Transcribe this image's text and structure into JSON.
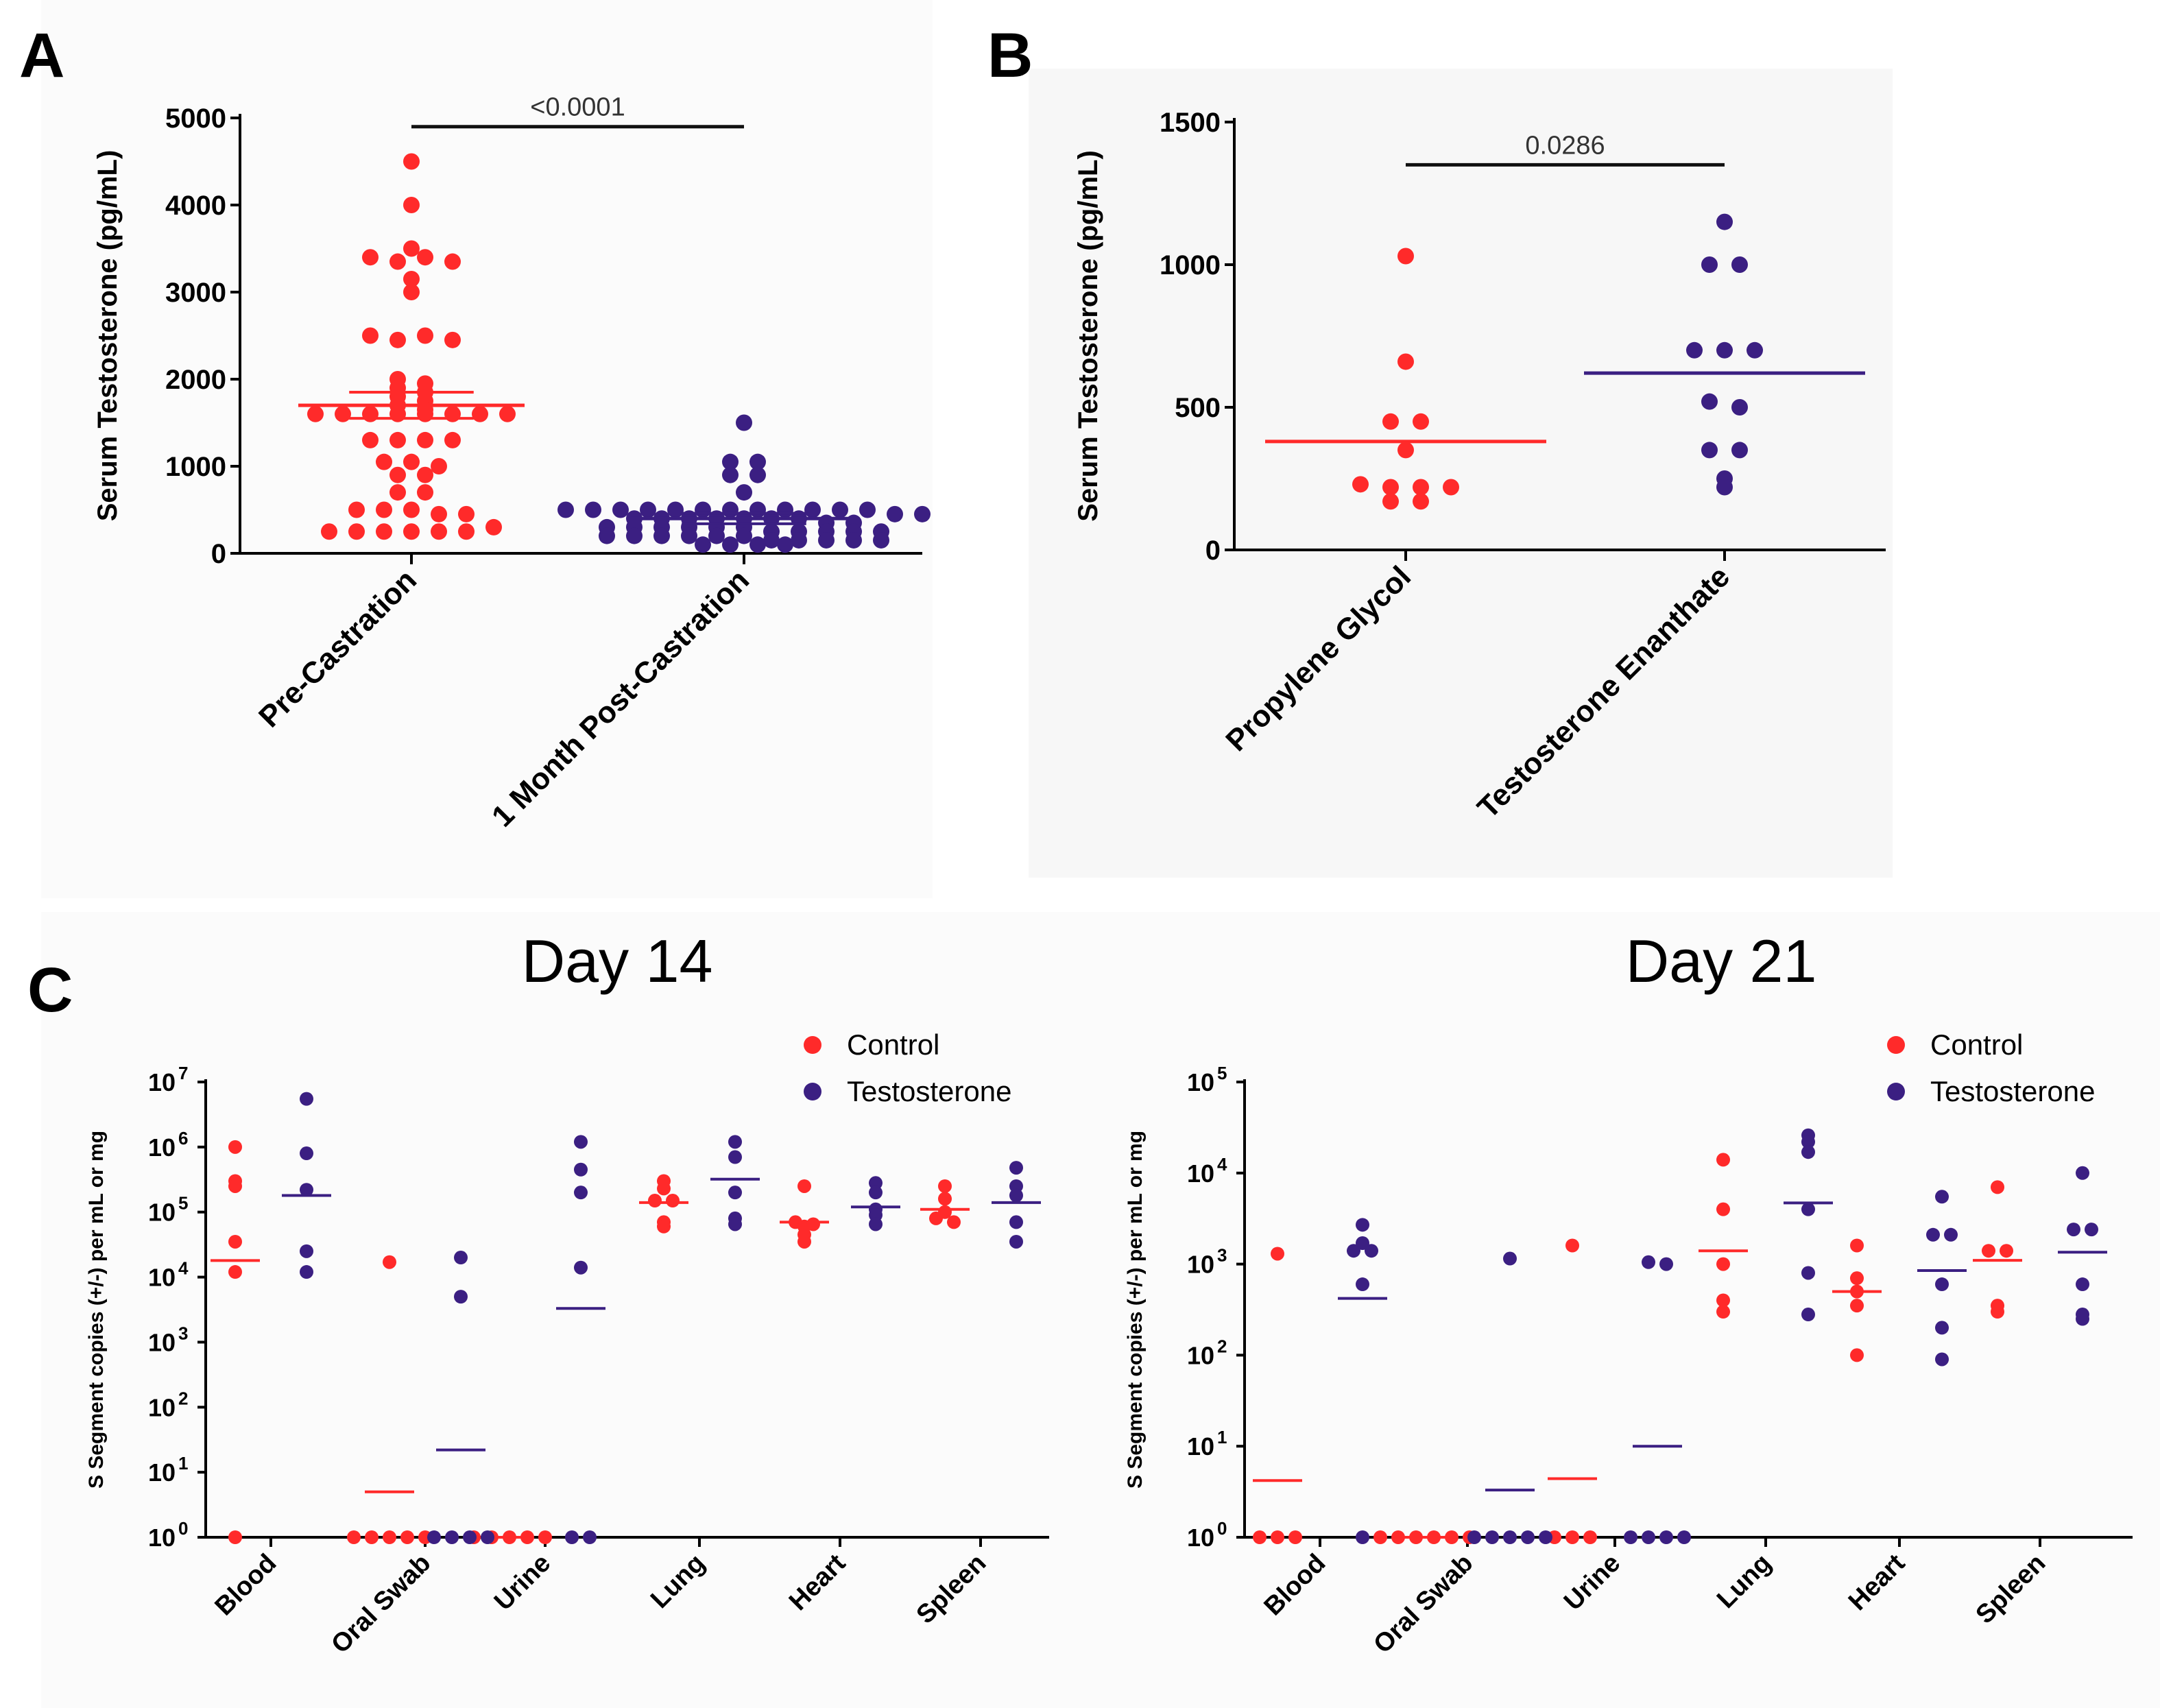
{
  "figure": {
    "panel_labels": [
      "A",
      "B",
      "C"
    ],
    "colors": {
      "control": "#ff2a2a",
      "testosterone": "#3b1f82",
      "axis": "#000000",
      "background": "#ffffff",
      "panel_bg": "#f9f9f9"
    }
  },
  "chart_data": [
    {
      "id": "A",
      "type": "scatter",
      "title": "",
      "ylabel": "Serum Testosterone (pg/mL)",
      "ylim": [
        0,
        5000
      ],
      "yticks": [
        "0",
        "1000",
        "2000",
        "3000",
        "4000",
        "5000"
      ],
      "ytick_values": [
        0,
        1000,
        2000,
        3000,
        4000,
        5000
      ],
      "categories": [
        "Pre-Castration",
        "1 Month Post-Castration"
      ],
      "series": [
        {
          "name": "Pre-Castration",
          "color": "#ff2a2a",
          "values": [
            4500,
            4000,
            3500,
            3400,
            3350,
            3400,
            3350,
            3150,
            3000,
            2500,
            2450,
            2500,
            2450,
            2000,
            1950,
            1900,
            1850,
            1800,
            1750,
            1700,
            1650,
            1600,
            1600,
            1600,
            1600,
            1600,
            1600,
            1600,
            1600,
            1300,
            1300,
            1300,
            1300,
            1050,
            1050,
            1000,
            900,
            900,
            700,
            700,
            500,
            500,
            500,
            450,
            450,
            250,
            250,
            250,
            250,
            250,
            250,
            300
          ],
          "mean": 1700,
          "sem_upper": 1850,
          "sem_lower": 1550
        },
        {
          "name": "1 Month Post-Castration",
          "color": "#3b1f82",
          "values": [
            1500,
            1050,
            1050,
            900,
            900,
            700,
            500,
            500,
            500,
            500,
            500,
            500,
            500,
            500,
            500,
            500,
            500,
            500,
            450,
            450,
            400,
            400,
            400,
            400,
            400,
            400,
            400,
            350,
            350,
            300,
            300,
            300,
            300,
            300,
            300,
            250,
            250,
            250,
            250,
            250,
            200,
            200,
            200,
            200,
            200,
            200,
            150,
            150,
            150,
            150,
            150,
            100,
            100,
            100,
            100
          ],
          "mean": 400,
          "sem_upper": 460,
          "sem_lower": 340
        }
      ],
      "annotations": [
        {
          "text": "<0.0001",
          "between": [
            0,
            1
          ],
          "at_value": 4900
        }
      ]
    },
    {
      "id": "B",
      "type": "scatter",
      "title": "",
      "ylabel": "Serum Testosterone (pg/mL)",
      "ylim": [
        0,
        1500
      ],
      "yticks": [
        "0",
        "500",
        "1000",
        "1500"
      ],
      "ytick_values": [
        0,
        500,
        1000,
        1500
      ],
      "categories": [
        "Propylene Glycol",
        "Testosterone Enanthate"
      ],
      "series": [
        {
          "name": "Propylene Glycol",
          "color": "#ff2a2a",
          "values": [
            1030,
            660,
            450,
            450,
            350,
            230,
            220,
            220,
            220,
            170,
            170
          ],
          "mean": 380
        },
        {
          "name": "Testosterone Enanthate",
          "color": "#3b1f82",
          "values": [
            1150,
            1000,
            1000,
            700,
            700,
            700,
            520,
            500,
            350,
            350,
            250,
            220
          ],
          "mean": 620
        }
      ],
      "annotations": [
        {
          "text": "0.0286",
          "between": [
            0,
            1
          ],
          "at_value": 1350
        }
      ]
    },
    {
      "id": "C-Day14",
      "type": "scatter",
      "yscale": "log",
      "title": "Day 14",
      "ylabel": "S Segment copies (+/-) per mL or mg",
      "ylim_exp": [
        0,
        7
      ],
      "ytick_exponents": [
        "0",
        "1",
        "2",
        "3",
        "4",
        "5",
        "6",
        "7"
      ],
      "categories": [
        "Blood",
        "Oral Swab",
        "Urine",
        "Lung",
        "Heart",
        "Spleen"
      ],
      "legend": [
        "Control",
        "Testosterone"
      ],
      "legend_position": "top-right",
      "series": [
        {
          "name": "Control",
          "color": "#ff2a2a",
          "points": [
            [
              0,
              [
                1000000,
                300000,
                250000,
                35000,
                12000,
                1
              ]
            ],
            [
              1,
              [
                17000,
                1,
                1,
                1,
                1,
                1
              ]
            ],
            [
              2,
              [
                1,
                1,
                1,
                1,
                1
              ]
            ],
            [
              3,
              [
                300000,
                150000,
                150000,
                230000,
                70000,
                60000
              ]
            ],
            [
              4,
              [
                250000,
                70000,
                60000,
                45000,
                35000,
                65000
              ]
            ],
            [
              5,
              [
                250000,
                160000,
                100000,
                80000,
                70000
              ]
            ]
          ],
          "means": [
            18000,
            5,
            1,
            140000,
            70000,
            110000
          ]
        },
        {
          "name": "Testosterone",
          "color": "#3b1f82",
          "points": [
            [
              0,
              [
                5500000,
                800000,
                220000,
                25000,
                12000
              ]
            ],
            [
              1,
              [
                20000,
                5000,
                1,
                1,
                1,
                1
              ]
            ],
            [
              2,
              [
                1200000,
                200000,
                450000,
                14000,
                1,
                1
              ]
            ],
            [
              3,
              [
                1200000,
                700000,
                200000,
                80000,
                65000
              ]
            ],
            [
              4,
              [
                280000,
                200000,
                110000,
                90000,
                65000
              ]
            ],
            [
              5,
              [
                480000,
                250000,
                180000,
                70000,
                35000
              ]
            ]
          ],
          "means": [
            180000,
            22,
            3300,
            320000,
            120000,
            140000
          ]
        }
      ]
    },
    {
      "id": "C-Day21",
      "type": "scatter",
      "yscale": "log",
      "title": "Day 21",
      "ylabel": "S Segment copies (+/-) per mL or mg",
      "ylim_exp": [
        0,
        5
      ],
      "ytick_exponents": [
        "0",
        "1",
        "2",
        "3",
        "4",
        "5"
      ],
      "categories": [
        "Blood",
        "Oral Swab",
        "Urine",
        "Lung",
        "Heart",
        "Spleen"
      ],
      "legend": [
        "Control",
        "Testosterone"
      ],
      "legend_position": "top-right",
      "series": [
        {
          "name": "Control",
          "color": "#ff2a2a",
          "points": [
            [
              0,
              [
                1300,
                1,
                1,
                1
              ]
            ],
            [
              1,
              [
                1,
                1,
                1,
                1,
                1,
                1
              ]
            ],
            [
              2,
              [
                1600,
                1,
                1,
                1
              ]
            ],
            [
              3,
              [
                14000,
                4000,
                1000,
                400,
                300
              ]
            ],
            [
              4,
              [
                1600,
                700,
                500,
                350,
                100
              ]
            ],
            [
              5,
              [
                7000,
                1400,
                1400,
                350,
                300
              ]
            ]
          ],
          "means": [
            4.2,
            1,
            4.4,
            1400,
            500,
            1100
          ]
        },
        {
          "name": "Testosterone",
          "color": "#3b1f82",
          "points": [
            [
              0,
              [
                2700,
                1700,
                1400,
                1400,
                600,
                1
              ]
            ],
            [
              1,
              [
                1150,
                1,
                1,
                1,
                1,
                1
              ]
            ],
            [
              2,
              [
                1050,
                1000,
                1,
                1,
                1,
                1
              ]
            ],
            [
              3,
              [
                26000,
                22000,
                17000,
                4000,
                800,
                280
              ]
            ],
            [
              4,
              [
                5500,
                2100,
                2100,
                600,
                200,
                90
              ]
            ],
            [
              5,
              [
                10000,
                2400,
                2400,
                600,
                280,
                250
              ]
            ]
          ],
          "means": [
            420,
            3.3,
            10,
            4700,
            850,
            1350
          ]
        }
      ]
    }
  ]
}
